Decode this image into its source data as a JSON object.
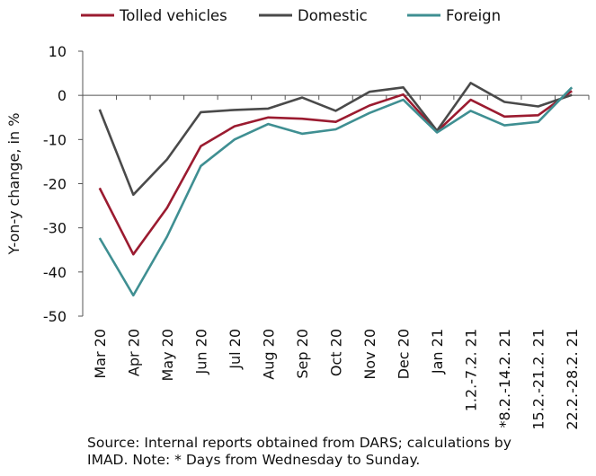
{
  "chart_data": {
    "type": "line",
    "ylabel": "Y-on-y change, in %",
    "xlabel": "",
    "ylim": [
      -50,
      10
    ],
    "yticks": [
      10,
      0,
      -10,
      -20,
      -30,
      -40,
      -50
    ],
    "grid": false,
    "legend_position": "top",
    "categories": [
      "Mar 20",
      "Apr 20",
      "May 20",
      "Jun 20",
      "Jul 20",
      "Aug 20",
      "Sep 20",
      "Oct 20",
      "Nov 20",
      "Dec 20",
      "Jan 21",
      "1.2.-7.2. 21",
      "*8.2.-14.2. 21",
      "15.2.-21.2. 21",
      "22.2.-28.2. 21"
    ],
    "series": [
      {
        "name": "Tolled vehicles",
        "color": "#9b1b30",
        "values": [
          -21,
          -36,
          -25.5,
          -11.5,
          -7,
          -5,
          -5.3,
          -6,
          -2.3,
          0.2,
          -8.2,
          -1,
          -4.8,
          -4.5,
          1
        ]
      },
      {
        "name": "Domestic",
        "color": "#4a4a4a",
        "values": [
          -3.2,
          -22.5,
          -14.5,
          -3.8,
          -3.3,
          -3,
          -0.5,
          -3.5,
          0.8,
          1.8,
          -8,
          2.8,
          -1.5,
          -2.5,
          0.1
        ]
      },
      {
        "name": "Foreign",
        "color": "#3f8f92",
        "values": [
          -32.3,
          -45.3,
          -32,
          -16,
          -10,
          -6.5,
          -8.7,
          -7.7,
          -4,
          -1,
          -8.4,
          -3.5,
          -6.8,
          -6,
          1.8
        ]
      }
    ]
  },
  "note": {
    "text": "Source: Internal reports obtained from DARS; calculations by IMAD. Note: * Days from Wednesday to Sunday."
  }
}
